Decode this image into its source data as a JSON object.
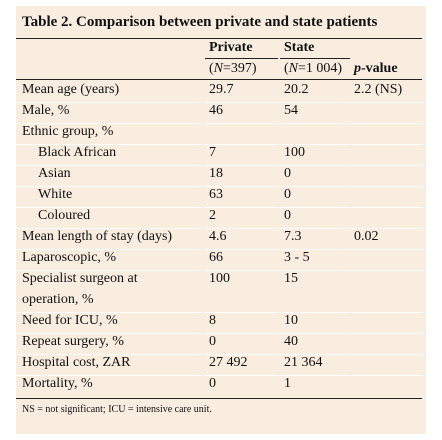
{
  "table": {
    "title": "Table 2. Comparison between private and state patients",
    "columns": {
      "private_label": "Private",
      "private_n": "(N=397)",
      "state_label": "State",
      "state_n": "(N=1 004)",
      "pvalue_label": "p-value"
    },
    "rows": [
      {
        "label": "Mean age (years)",
        "private": "29.7",
        "state": "20.2",
        "p": "2.2 (NS)",
        "indent": false
      },
      {
        "label": "Male, %",
        "private": "46",
        "state": "54",
        "p": "",
        "indent": false
      },
      {
        "label": "Ethnic group, %",
        "private": "",
        "state": "",
        "p": "",
        "indent": false
      },
      {
        "label": "Black African",
        "private": "7",
        "state": "100",
        "p": "",
        "indent": true
      },
      {
        "label": "Asian",
        "private": "18",
        "state": "0",
        "p": "",
        "indent": true
      },
      {
        "label": "White",
        "private": "63",
        "state": "0",
        "p": "",
        "indent": true
      },
      {
        "label": "Coloured",
        "private": "2",
        "state": "0",
        "p": "",
        "indent": true
      },
      {
        "label": "Mean length of stay (days)",
        "private": "4.6",
        "state": "7.3",
        "p": "0.02",
        "indent": false
      },
      {
        "label": "Laparoscopic, %",
        "private": "66",
        "state": "3 - 5",
        "p": "",
        "indent": false
      },
      {
        "label": "Specialist surgeon at",
        "label2": "operation, %",
        "private": "100",
        "state": "15",
        "p": "",
        "indent": false
      },
      {
        "label": "Need for ICU, %",
        "private": "8",
        "state": "10",
        "p": "",
        "indent": false
      },
      {
        "label": "Repeat surgery, %",
        "private": "0",
        "state": "40",
        "p": "",
        "indent": false
      },
      {
        "label": "Hospital cost, ZAR",
        "private": "27 492",
        "state": "21 364",
        "p": "",
        "indent": false
      },
      {
        "label": "Mortality, %",
        "private": "0",
        "state": "1",
        "p": "",
        "indent": false
      }
    ],
    "footnote": "NS = not significant; ICU = intensive care unit."
  }
}
